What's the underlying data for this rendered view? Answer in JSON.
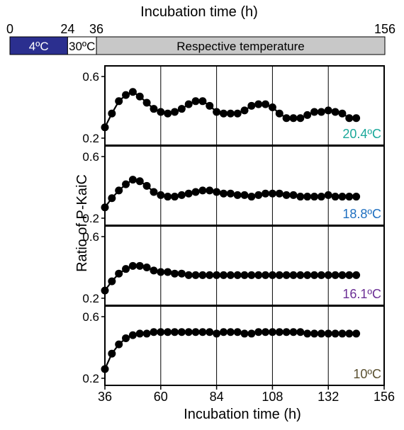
{
  "timeline": {
    "title": "Incubation time (h)",
    "ticks": [
      "0",
      "24",
      "36",
      "156"
    ],
    "tick_values": [
      0,
      24,
      36,
      156
    ],
    "segments": [
      {
        "label": "4ºC",
        "start": 0,
        "end": 24,
        "color": "#2b2f8f",
        "text_color": "#ffffff"
      },
      {
        "label": "30ºC",
        "start": 24,
        "end": 36,
        "color": "#ffffff",
        "text_color": "#000000"
      },
      {
        "label": "Respective temperature",
        "start": 36,
        "end": 156,
        "color": "#c8c8c8",
        "text_color": "#000000"
      }
    ]
  },
  "chart_data": {
    "type": "line",
    "xlabel": "Incubation time (h)",
    "ylabel": "Ratio of P-KaiC",
    "xlim": [
      36,
      156
    ],
    "ylim": [
      0.2,
      0.6
    ],
    "x_ticks": [
      36,
      60,
      84,
      108,
      132,
      156
    ],
    "y_ticks": [
      0.2,
      0.6
    ],
    "grid_x": [
      60,
      84,
      108,
      132
    ],
    "x": [
      36,
      39,
      42,
      45,
      48,
      51,
      54,
      57,
      60,
      63,
      66,
      69,
      72,
      75,
      78,
      81,
      84,
      87,
      90,
      93,
      96,
      99,
      102,
      105,
      108,
      111,
      114,
      117,
      120,
      123,
      126,
      129,
      132,
      135,
      138,
      141,
      144
    ],
    "panels": [
      {
        "name": "20.4ºC",
        "color": "#1aa89a",
        "values": [
          0.27,
          0.36,
          0.44,
          0.48,
          0.5,
          0.47,
          0.43,
          0.39,
          0.37,
          0.36,
          0.37,
          0.39,
          0.42,
          0.44,
          0.44,
          0.41,
          0.37,
          0.36,
          0.36,
          0.36,
          0.38,
          0.41,
          0.42,
          0.42,
          0.4,
          0.36,
          0.33,
          0.33,
          0.33,
          0.35,
          0.37,
          0.37,
          0.38,
          0.37,
          0.36,
          0.33,
          0.33
        ]
      },
      {
        "name": "18.8ºC",
        "color": "#1e6fc0",
        "values": [
          0.27,
          0.33,
          0.38,
          0.42,
          0.45,
          0.44,
          0.41,
          0.37,
          0.35,
          0.34,
          0.34,
          0.35,
          0.36,
          0.37,
          0.38,
          0.38,
          0.37,
          0.36,
          0.36,
          0.35,
          0.35,
          0.34,
          0.35,
          0.36,
          0.36,
          0.36,
          0.35,
          0.35,
          0.34,
          0.34,
          0.34,
          0.34,
          0.35,
          0.34,
          0.34,
          0.34,
          0.34
        ]
      },
      {
        "name": "16.1ºC",
        "color": "#6b2f95",
        "values": [
          0.25,
          0.31,
          0.36,
          0.39,
          0.41,
          0.41,
          0.4,
          0.38,
          0.37,
          0.37,
          0.36,
          0.36,
          0.35,
          0.35,
          0.35,
          0.35,
          0.35,
          0.35,
          0.35,
          0.35,
          0.35,
          0.35,
          0.35,
          0.35,
          0.35,
          0.35,
          0.35,
          0.35,
          0.35,
          0.35,
          0.35,
          0.35,
          0.35,
          0.35,
          0.35,
          0.35,
          0.35
        ]
      },
      {
        "name": "10ºC",
        "color": "#5a5030",
        "values": [
          0.26,
          0.36,
          0.42,
          0.46,
          0.48,
          0.49,
          0.49,
          0.5,
          0.5,
          0.5,
          0.5,
          0.5,
          0.5,
          0.5,
          0.5,
          0.5,
          0.49,
          0.5,
          0.5,
          0.5,
          0.49,
          0.49,
          0.5,
          0.5,
          0.5,
          0.5,
          0.5,
          0.5,
          0.5,
          0.49,
          0.49,
          0.49,
          0.49,
          0.49,
          0.49,
          0.49,
          0.49
        ]
      }
    ]
  }
}
